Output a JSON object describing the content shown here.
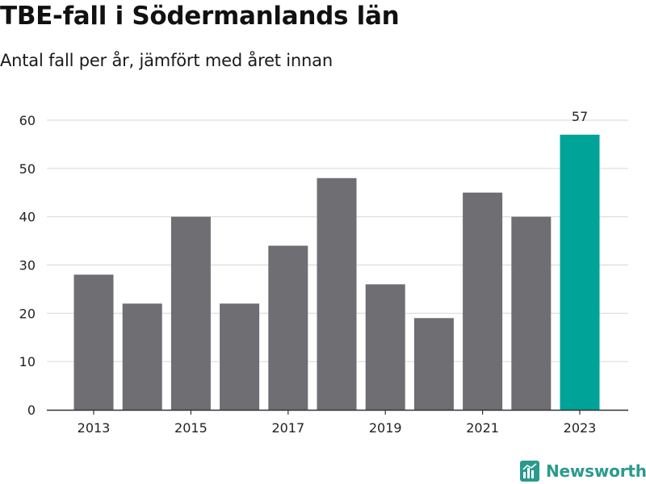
{
  "title": "TBE-fall i Södermanlands län",
  "subtitle": "Antal fall per år, jämfört med året innan",
  "brand": {
    "name": "Newsworthy",
    "icon": "bar-chart-logo-icon"
  },
  "colors": {
    "bar": "#6e6e73",
    "highlight": "#00a398",
    "grid": "#dcdcdc",
    "axis": "#333333",
    "brand": "#2b9a8e"
  },
  "chart_data": {
    "type": "bar",
    "categories": [
      "2013",
      "2014",
      "2015",
      "2016",
      "2017",
      "2018",
      "2019",
      "2020",
      "2021",
      "2022",
      "2023"
    ],
    "values": [
      28,
      22,
      40,
      22,
      34,
      48,
      26,
      19,
      45,
      40,
      57
    ],
    "highlight_index": 10,
    "data_labels": [
      {
        "index": 10,
        "text": "57"
      }
    ],
    "x_tick_labels": [
      "2013",
      "2015",
      "2017",
      "2019",
      "2021",
      "2023"
    ],
    "y_ticks": [
      0,
      10,
      20,
      30,
      40,
      50,
      60
    ],
    "ylim": [
      0,
      60
    ],
    "grid": true,
    "legend": "none",
    "title": "TBE-fall i Södermanlands län",
    "subtitle": "Antal fall per år, jämfört med året innan",
    "xlabel": "",
    "ylabel": ""
  }
}
